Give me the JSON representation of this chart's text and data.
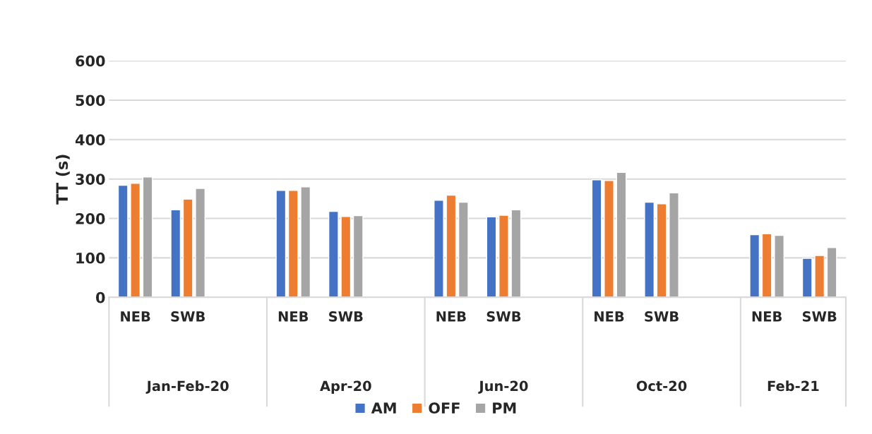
{
  "chart_data": {
    "type": "bar",
    "ylabel": "TT (s)",
    "categories": [
      "NEB",
      "SWB",
      null,
      "NEB",
      "SWB",
      null,
      "NEB",
      "SWB",
      null,
      "NEB",
      "SWB",
      null,
      "NEB",
      "SWB"
    ],
    "annotations": [
      "Jan-Feb-20",
      "Apr-20",
      "Jun-20",
      "Oct-20",
      "Feb-21"
    ],
    "series": [
      {
        "name": "AM",
        "color": "#4472c4",
        "values": [
          284,
          222,
          null,
          271,
          218,
          null,
          246,
          204,
          null,
          298,
          241,
          null,
          159,
          99
        ]
      },
      {
        "name": "OFF",
        "color": "#ed7d31",
        "values": [
          289,
          249,
          null,
          271,
          205,
          null,
          259,
          208,
          null,
          296,
          237,
          null,
          161,
          106
        ]
      },
      {
        "name": "PM",
        "color": "#a5a5a5",
        "values": [
          305,
          276,
          null,
          280,
          207,
          null,
          241,
          222,
          null,
          317,
          265,
          null,
          157,
          126
        ]
      }
    ],
    "ylim": [
      0,
      600
    ],
    "yticks": [
      0,
      100,
      200,
      300,
      400,
      500,
      600
    ],
    "grid": "y",
    "legend": "bottom"
  }
}
